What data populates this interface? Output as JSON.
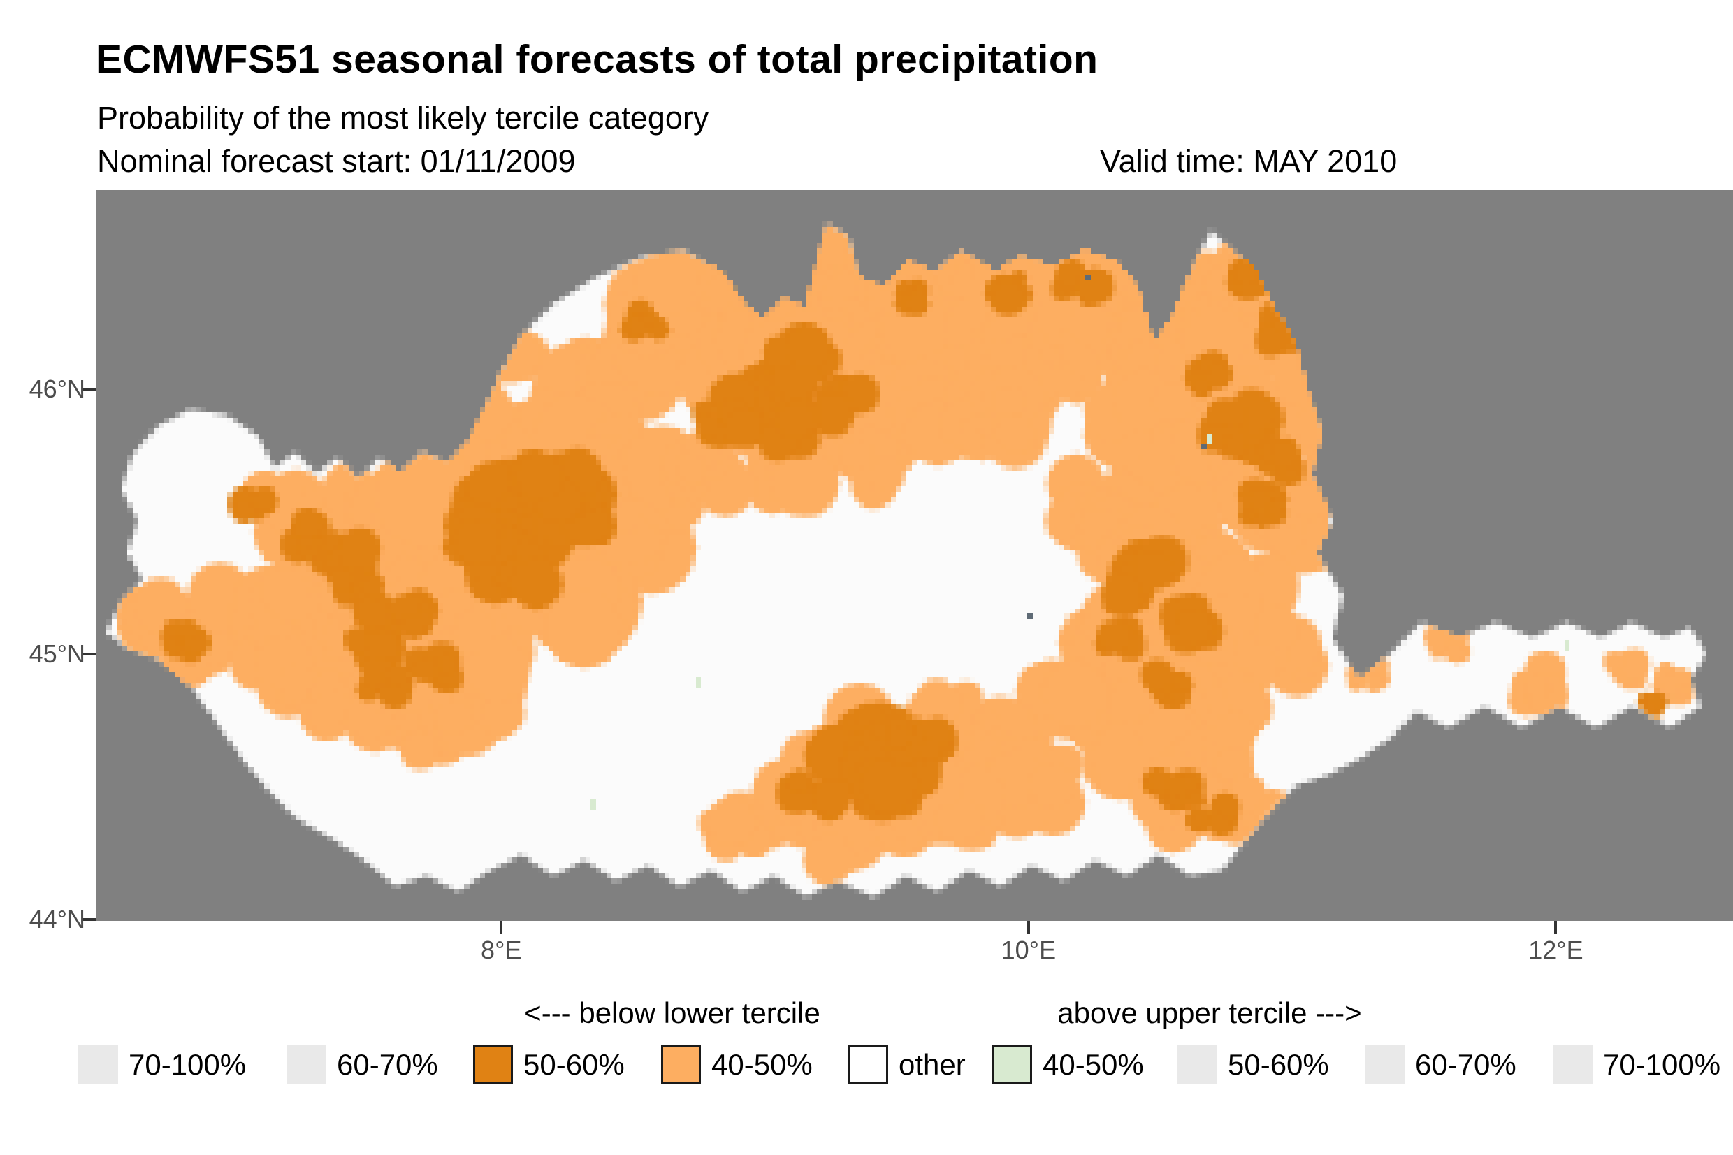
{
  "header": {
    "title": "ECMWFS51 seasonal forecasts of total precipitation",
    "subtitle": "Probability of the most likely tercile category",
    "forecast_start": "Nominal forecast start: 01/11/2009",
    "valid_time": "Valid time: MAY 2010"
  },
  "axes": {
    "x_ticks": [
      {
        "label": "8°E",
        "lon": 8
      },
      {
        "label": "10°E",
        "lon": 10
      },
      {
        "label": "12°E",
        "lon": 12
      }
    ],
    "y_ticks": [
      {
        "label": "46°N",
        "lat": 46
      },
      {
        "label": "45°N",
        "lat": 45
      },
      {
        "label": "44°N",
        "lat": 44
      }
    ]
  },
  "legend": {
    "below_header": "<--- below lower tercile",
    "above_header": "above upper tercile --->",
    "items": [
      {
        "label": "70-100%",
        "fill": "#e9e9e9",
        "border": false,
        "side": "below"
      },
      {
        "label": "60-70%",
        "fill": "#e9e9e9",
        "border": false,
        "side": "below"
      },
      {
        "label": "50-60%",
        "fill": "#e08214",
        "border": true,
        "side": "below"
      },
      {
        "label": "40-50%",
        "fill": "#fdae61",
        "border": true,
        "side": "below"
      },
      {
        "label": "other",
        "fill": "#ffffff",
        "border": true,
        "side": "none"
      },
      {
        "label": "40-50%",
        "fill": "#d8ead0",
        "border": true,
        "side": "above"
      },
      {
        "label": "50-60%",
        "fill": "#e9e9e9",
        "border": false,
        "side": "above"
      },
      {
        "label": "60-70%",
        "fill": "#e9e9e9",
        "border": false,
        "side": "above"
      },
      {
        "label": "70-100%",
        "fill": "#e9e9e9",
        "border": false,
        "side": "above"
      }
    ]
  },
  "map": {
    "background_color": "#808080",
    "domain_fill": "#fbfbfb",
    "category_colors": {
      "below_50_60": "#e08214",
      "below_40_50": "#fdae61",
      "above_40_50": "#d8ead0",
      "lake": "#5f6b76"
    },
    "extent": {
      "lon_min": 6.462,
      "lon_max": 12.672,
      "lat_min": 43.994,
      "lat_max": 46.751
    },
    "cell_deg": 0.02,
    "outline": [
      [
        6.5,
        45.08
      ],
      [
        6.56,
        45.2
      ],
      [
        6.64,
        45.28
      ],
      [
        6.58,
        45.38
      ],
      [
        6.62,
        45.5
      ],
      [
        6.56,
        45.62
      ],
      [
        6.6,
        45.75
      ],
      [
        6.7,
        45.86
      ],
      [
        6.82,
        45.92
      ],
      [
        6.96,
        45.9
      ],
      [
        7.08,
        45.82
      ],
      [
        7.14,
        45.7
      ],
      [
        7.22,
        45.76
      ],
      [
        7.3,
        45.68
      ],
      [
        7.38,
        45.74
      ],
      [
        7.46,
        45.66
      ],
      [
        7.54,
        45.74
      ],
      [
        7.62,
        45.68
      ],
      [
        7.7,
        45.76
      ],
      [
        7.8,
        45.72
      ],
      [
        7.88,
        45.8
      ],
      [
        7.94,
        45.92
      ],
      [
        8.0,
        46.06
      ],
      [
        8.08,
        46.2
      ],
      [
        8.2,
        46.32
      ],
      [
        8.36,
        46.42
      ],
      [
        8.54,
        46.5
      ],
      [
        8.7,
        46.52
      ],
      [
        8.84,
        46.44
      ],
      [
        8.92,
        46.32
      ],
      [
        9.0,
        46.26
      ],
      [
        9.08,
        46.34
      ],
      [
        9.16,
        46.3
      ],
      [
        9.24,
        46.62
      ],
      [
        9.32,
        46.58
      ],
      [
        9.36,
        46.42
      ],
      [
        9.46,
        46.38
      ],
      [
        9.55,
        46.48
      ],
      [
        9.65,
        46.44
      ],
      [
        9.75,
        46.52
      ],
      [
        9.88,
        46.44
      ],
      [
        9.98,
        46.5
      ],
      [
        10.1,
        46.46
      ],
      [
        10.22,
        46.52
      ],
      [
        10.34,
        46.48
      ],
      [
        10.42,
        46.38
      ],
      [
        10.48,
        46.16
      ],
      [
        10.56,
        46.28
      ],
      [
        10.64,
        46.48
      ],
      [
        10.7,
        46.6
      ],
      [
        10.78,
        46.52
      ],
      [
        10.86,
        46.46
      ],
      [
        10.94,
        46.3
      ],
      [
        11.02,
        46.16
      ],
      [
        11.06,
        46.0
      ],
      [
        11.12,
        45.84
      ],
      [
        11.08,
        45.68
      ],
      [
        11.16,
        45.5
      ],
      [
        11.1,
        45.38
      ],
      [
        11.2,
        45.22
      ],
      [
        11.16,
        45.06
      ],
      [
        11.26,
        44.9
      ],
      [
        11.38,
        45.0
      ],
      [
        11.5,
        45.12
      ],
      [
        11.64,
        45.06
      ],
      [
        11.78,
        45.12
      ],
      [
        11.92,
        45.06
      ],
      [
        12.05,
        45.12
      ],
      [
        12.18,
        45.06
      ],
      [
        12.3,
        45.12
      ],
      [
        12.42,
        45.06
      ],
      [
        12.52,
        45.1
      ],
      [
        12.58,
        45.0
      ],
      [
        12.52,
        44.9
      ],
      [
        12.56,
        44.8
      ],
      [
        12.44,
        44.72
      ],
      [
        12.3,
        44.8
      ],
      [
        12.16,
        44.72
      ],
      [
        12.02,
        44.8
      ],
      [
        11.88,
        44.72
      ],
      [
        11.74,
        44.8
      ],
      [
        11.6,
        44.72
      ],
      [
        11.48,
        44.78
      ],
      [
        11.38,
        44.68
      ],
      [
        11.26,
        44.6
      ],
      [
        11.14,
        44.54
      ],
      [
        11.02,
        44.5
      ],
      [
        10.92,
        44.4
      ],
      [
        10.82,
        44.28
      ],
      [
        10.74,
        44.18
      ],
      [
        10.62,
        44.16
      ],
      [
        10.5,
        44.24
      ],
      [
        10.38,
        44.16
      ],
      [
        10.26,
        44.22
      ],
      [
        10.14,
        44.14
      ],
      [
        10.02,
        44.2
      ],
      [
        9.9,
        44.12
      ],
      [
        9.78,
        44.18
      ],
      [
        9.66,
        44.1
      ],
      [
        9.54,
        44.16
      ],
      [
        9.42,
        44.08
      ],
      [
        9.28,
        44.14
      ],
      [
        9.16,
        44.08
      ],
      [
        9.04,
        44.16
      ],
      [
        8.92,
        44.1
      ],
      [
        8.8,
        44.18
      ],
      [
        8.68,
        44.12
      ],
      [
        8.56,
        44.2
      ],
      [
        8.44,
        44.14
      ],
      [
        8.32,
        44.22
      ],
      [
        8.2,
        44.16
      ],
      [
        8.08,
        44.24
      ],
      [
        7.96,
        44.18
      ],
      [
        7.84,
        44.1
      ],
      [
        7.72,
        44.16
      ],
      [
        7.6,
        44.12
      ],
      [
        7.48,
        44.22
      ],
      [
        7.36,
        44.3
      ],
      [
        7.22,
        44.38
      ],
      [
        7.12,
        44.48
      ],
      [
        7.02,
        44.6
      ],
      [
        6.92,
        44.74
      ],
      [
        6.82,
        44.88
      ],
      [
        6.7,
        44.98
      ],
      [
        6.58,
        45.02
      ],
      [
        6.5,
        45.08
      ]
    ],
    "patches_below_40_50": [
      [
        6.7,
        45.1,
        0.14
      ],
      [
        6.85,
        45.0,
        0.12
      ],
      [
        7.0,
        45.12,
        0.16
      ],
      [
        7.15,
        45.02,
        0.14
      ],
      [
        7.3,
        44.95,
        0.16
      ],
      [
        7.45,
        44.85,
        0.14
      ],
      [
        7.6,
        44.78,
        0.16
      ],
      [
        7.75,
        44.7,
        0.14
      ],
      [
        7.9,
        44.8,
        0.16
      ],
      [
        7.55,
        45.0,
        0.18
      ],
      [
        7.7,
        44.95,
        0.15
      ],
      [
        7.25,
        45.22,
        0.16
      ],
      [
        7.45,
        45.15,
        0.14
      ],
      [
        7.15,
        45.55,
        0.12
      ],
      [
        7.35,
        45.45,
        0.2
      ],
      [
        7.55,
        45.55,
        0.22
      ],
      [
        7.75,
        45.45,
        0.22
      ],
      [
        7.6,
        45.3,
        0.2
      ],
      [
        7.8,
        45.2,
        0.22
      ],
      [
        7.95,
        45.05,
        0.18
      ],
      [
        7.9,
        45.6,
        0.25
      ],
      [
        8.1,
        45.7,
        0.22
      ],
      [
        8.0,
        45.9,
        0.2
      ],
      [
        8.2,
        46.05,
        0.2
      ],
      [
        8.4,
        46.15,
        0.22
      ],
      [
        8.6,
        46.28,
        0.22
      ],
      [
        8.8,
        46.35,
        0.2
      ],
      [
        8.3,
        45.8,
        0.2
      ],
      [
        8.2,
        45.3,
        0.25
      ],
      [
        8.4,
        45.45,
        0.22
      ],
      [
        8.55,
        45.6,
        0.2
      ],
      [
        8.35,
        45.15,
        0.18
      ],
      [
        9.0,
        46.35,
        0.2
      ],
      [
        9.2,
        46.45,
        0.16
      ],
      [
        9.4,
        46.35,
        0.18
      ],
      [
        9.6,
        46.4,
        0.18
      ],
      [
        9.8,
        46.35,
        0.2
      ],
      [
        10.0,
        46.4,
        0.2
      ],
      [
        10.2,
        46.42,
        0.2
      ],
      [
        10.4,
        46.3,
        0.2
      ],
      [
        8.95,
        46.1,
        0.18
      ],
      [
        9.15,
        46.2,
        0.18
      ],
      [
        9.4,
        46.05,
        0.2
      ],
      [
        9.6,
        46.15,
        0.18
      ],
      [
        9.85,
        46.1,
        0.2
      ],
      [
        10.05,
        46.15,
        0.2
      ],
      [
        10.25,
        46.2,
        0.2
      ],
      [
        9.3,
        45.85,
        0.2
      ],
      [
        9.55,
        45.9,
        0.18
      ],
      [
        9.75,
        45.85,
        0.18
      ],
      [
        9.0,
        45.85,
        0.18
      ],
      [
        10.55,
        46.3,
        0.2
      ],
      [
        10.75,
        46.4,
        0.2
      ],
      [
        10.9,
        46.3,
        0.2
      ],
      [
        11.0,
        46.15,
        0.18
      ],
      [
        10.6,
        46.1,
        0.18
      ],
      [
        10.8,
        46.15,
        0.18
      ],
      [
        10.95,
        45.95,
        0.2
      ],
      [
        10.75,
        45.95,
        0.18
      ],
      [
        10.6,
        45.75,
        0.2
      ],
      [
        10.8,
        45.75,
        0.18
      ],
      [
        10.95,
        45.6,
        0.2
      ],
      [
        11.05,
        45.45,
        0.16
      ],
      [
        10.45,
        45.9,
        0.16
      ],
      [
        10.3,
        45.55,
        0.2
      ],
      [
        10.45,
        45.4,
        0.2
      ],
      [
        10.6,
        45.3,
        0.2
      ],
      [
        10.75,
        45.15,
        0.2
      ],
      [
        10.9,
        45.0,
        0.18
      ],
      [
        10.4,
        45.15,
        0.18
      ],
      [
        10.55,
        44.95,
        0.2
      ],
      [
        10.7,
        44.85,
        0.18
      ],
      [
        10.3,
        44.95,
        0.16
      ],
      [
        10.15,
        44.8,
        0.16
      ],
      [
        10.45,
        44.7,
        0.18
      ],
      [
        10.65,
        44.6,
        0.18
      ],
      [
        10.8,
        44.45,
        0.16
      ],
      [
        10.6,
        44.4,
        0.14
      ],
      [
        9.9,
        44.65,
        0.18
      ],
      [
        10.05,
        44.5,
        0.16
      ],
      [
        9.7,
        44.75,
        0.16
      ],
      [
        9.5,
        44.65,
        0.18
      ],
      [
        9.3,
        44.55,
        0.18
      ],
      [
        9.1,
        44.45,
        0.16
      ],
      [
        9.35,
        44.3,
        0.14
      ],
      [
        9.55,
        44.4,
        0.14
      ],
      [
        8.9,
        44.35,
        0.12
      ],
      [
        9.75,
        44.45,
        0.14
      ],
      [
        9.1,
        45.7,
        0.16
      ],
      [
        8.75,
        45.7,
        0.14
      ],
      [
        9.45,
        45.7,
        0.14
      ],
      [
        9.9,
        45.9,
        0.15
      ],
      [
        11.95,
        44.88,
        0.1
      ],
      [
        12.28,
        44.95,
        0.08
      ],
      [
        11.6,
        45.05,
        0.07
      ],
      [
        12.45,
        44.9,
        0.07
      ],
      [
        11.3,
        44.92,
        0.07
      ],
      [
        11.05,
        45.8,
        0.12
      ],
      [
        11.08,
        45.62,
        0.1
      ]
    ],
    "patches_below_50_60": [
      [
        8.0,
        45.55,
        0.16
      ],
      [
        8.15,
        45.45,
        0.18
      ],
      [
        8.3,
        45.55,
        0.14
      ],
      [
        8.05,
        45.35,
        0.14
      ],
      [
        7.9,
        45.45,
        0.12
      ],
      [
        8.2,
        45.65,
        0.12
      ],
      [
        7.4,
        45.35,
        0.1
      ],
      [
        7.25,
        45.45,
        0.08
      ],
      [
        7.5,
        45.05,
        0.12
      ],
      [
        7.45,
        45.22,
        0.1
      ],
      [
        7.65,
        45.15,
        0.1
      ],
      [
        7.75,
        44.95,
        0.09
      ],
      [
        7.55,
        44.9,
        0.08
      ],
      [
        6.8,
        45.05,
        0.07
      ],
      [
        7.05,
        45.55,
        0.07
      ],
      [
        9.0,
        46.0,
        0.15
      ],
      [
        9.15,
        46.1,
        0.12
      ],
      [
        9.3,
        45.95,
        0.12
      ],
      [
        8.85,
        45.85,
        0.1
      ],
      [
        9.1,
        45.85,
        0.09
      ],
      [
        9.95,
        46.38,
        0.08
      ],
      [
        10.2,
        46.4,
        0.08
      ],
      [
        8.55,
        46.25,
        0.07
      ],
      [
        9.55,
        46.35,
        0.06
      ],
      [
        10.8,
        45.85,
        0.12
      ],
      [
        10.95,
        45.75,
        0.1
      ],
      [
        10.9,
        45.55,
        0.08
      ],
      [
        11.0,
        46.22,
        0.1
      ],
      [
        10.7,
        46.05,
        0.08
      ],
      [
        10.85,
        46.42,
        0.08
      ],
      [
        10.45,
        45.28,
        0.12
      ],
      [
        10.6,
        45.12,
        0.1
      ],
      [
        10.35,
        45.05,
        0.08
      ],
      [
        10.55,
        44.88,
        0.08
      ],
      [
        9.35,
        44.6,
        0.15
      ],
      [
        9.5,
        44.5,
        0.13
      ],
      [
        9.2,
        44.48,
        0.1
      ],
      [
        9.6,
        44.68,
        0.09
      ],
      [
        9.45,
        44.72,
        0.08
      ],
      [
        10.55,
        44.5,
        0.08
      ],
      [
        10.7,
        44.4,
        0.08
      ],
      [
        12.38,
        44.8,
        0.05
      ]
    ],
    "cells_above_40_50": [
      [
        8.75,
        44.91
      ],
      [
        10.69,
        45.83
      ],
      [
        8.36,
        44.44
      ],
      [
        12.06,
        45.04
      ]
    ],
    "cells_lake": [
      [
        10.68,
        45.79
      ],
      [
        10.24,
        46.43
      ],
      [
        10.01,
        45.15
      ]
    ]
  }
}
